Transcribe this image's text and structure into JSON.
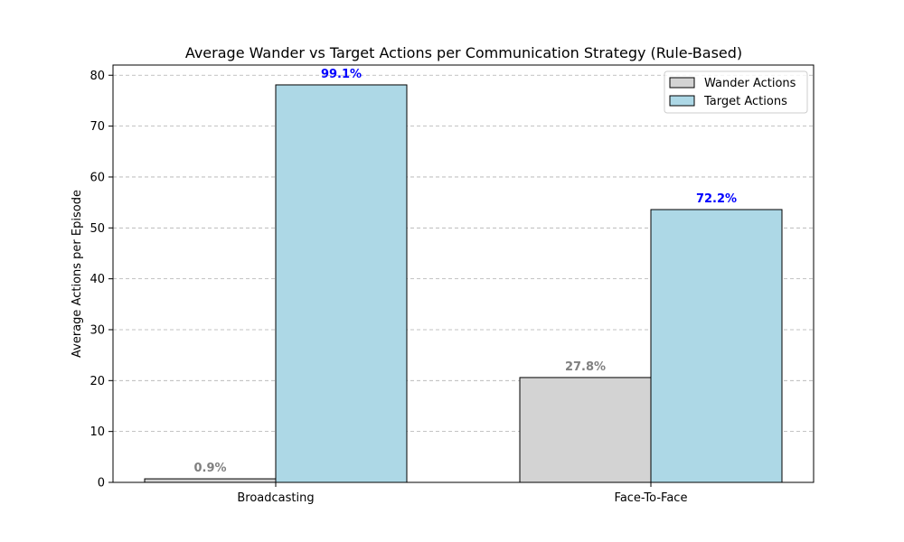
{
  "chart_data": {
    "type": "bar",
    "title": "Average Wander vs Target Actions per Communication Strategy (Rule-Based)",
    "xlabel": "",
    "ylabel": "Average Actions per Episode",
    "categories": [
      "Broadcasting",
      "Face-To-Face"
    ],
    "ylim": [
      0,
      82
    ],
    "yticks": [
      0,
      10,
      20,
      30,
      40,
      50,
      60,
      70,
      80
    ],
    "grid": "y dashed",
    "legend_position": "top-right",
    "series": [
      {
        "name": "Wander Actions",
        "color": "#d3d3d3",
        "label_color": "#808080",
        "values": [
          0.7,
          20.6
        ],
        "labels": [
          "0.9%",
          "27.8%"
        ]
      },
      {
        "name": "Target Actions",
        "color": "#add8e6",
        "label_color": "#0000ff",
        "values": [
          78.1,
          53.6
        ],
        "labels": [
          "99.1%",
          "72.2%"
        ]
      }
    ]
  }
}
